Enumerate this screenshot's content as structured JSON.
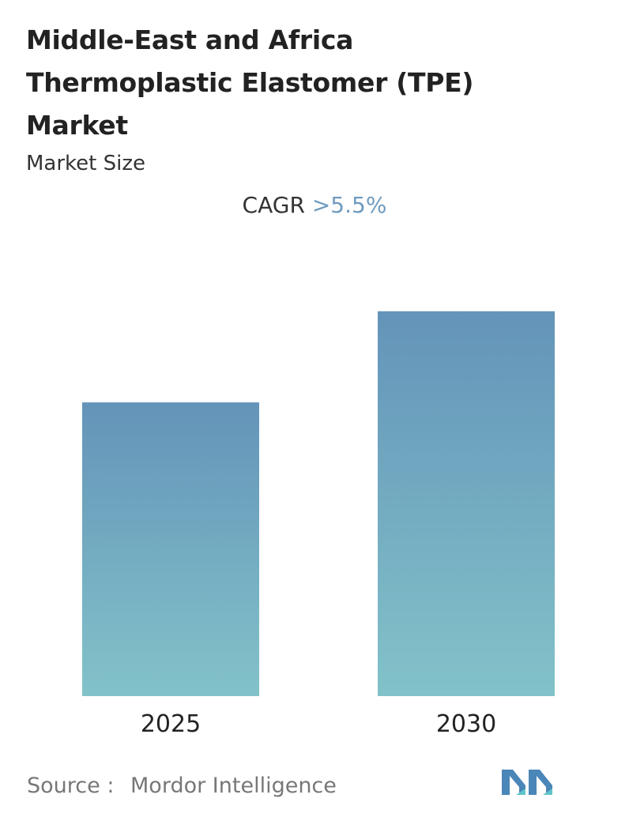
{
  "header": {
    "title_lines": [
      "Middle-East and Africa",
      "Thermoplastic Elastomer (TPE)",
      "Market"
    ],
    "subtitle": "Market Size"
  },
  "cagr": {
    "label": "CAGR",
    "value": ">5.5%"
  },
  "chart_data": {
    "type": "bar",
    "categories": [
      "2025",
      "2030"
    ],
    "values": [
      1.0,
      1.31
    ],
    "ylabel": "",
    "xlabel": "",
    "grid": false,
    "colors": {
      "bar_top": "#6494b9",
      "bar_bottom": "#82c2c9"
    }
  },
  "footer": {
    "source_label": "Source :",
    "source_name": "Mordor Intelligence",
    "logo_colors": {
      "primary": "#4a86b8",
      "secondary": "#5fc4c8"
    }
  }
}
